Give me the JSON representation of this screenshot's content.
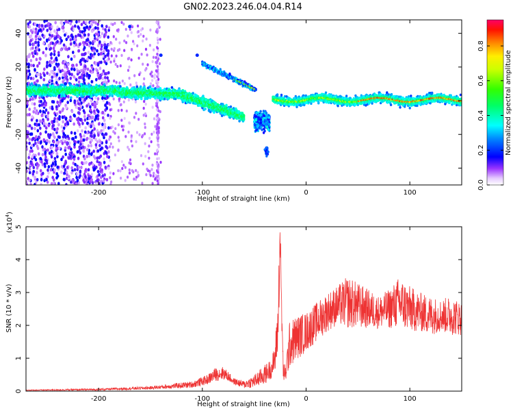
{
  "title": "GN02.2023.246.04.04.R14",
  "chart_data": [
    {
      "type": "heatmap",
      "xlabel": "Height of straight line (km)",
      "ylabel": "Frequency (Hz)",
      "xlim": [
        -270,
        150
      ],
      "ylim": [
        -50,
        48
      ],
      "x_ticks": [
        -200,
        -100,
        0,
        100
      ],
      "y_ticks": [
        -40,
        -20,
        0,
        20,
        40
      ],
      "colorbar": {
        "label": "Normalized spectral amplitude",
        "range": [
          0,
          0.95
        ],
        "ticks": [
          "0.0",
          "0.2",
          "0.4",
          "0.6",
          "0.8"
        ],
        "tick_values": [
          0,
          0.2,
          0.4,
          0.6,
          0.8
        ],
        "colormap": "rainbow (white/purple low → red/pink high)"
      },
      "features": [
        {
          "name": "main tone",
          "description": "horizontal band near 5 Hz descending to about -10 Hz",
          "x_range": [
            -270,
            -60
          ],
          "freq_range": [
            7,
            -12
          ]
        },
        {
          "name": "upper branch",
          "description": "branch descending from about 22 Hz to 8 Hz",
          "x_range": [
            -100,
            -50
          ],
          "freq_range": [
            22,
            8
          ]
        },
        {
          "name": "merge",
          "description": "both branches converge near -8 Hz and jump",
          "x_range": [
            -50,
            -35
          ],
          "freq_range": [
            -30,
            12
          ]
        },
        {
          "name": "steady tone",
          "description": "strong band near 0 Hz",
          "x_range": [
            -30,
            150
          ],
          "freq_range": [
            -3,
            3
          ]
        },
        {
          "name": "noise",
          "description": "broadband scattered noise at low heights",
          "x_range": [
            -270,
            -195
          ],
          "freq_range": [
            -50,
            48
          ]
        }
      ]
    },
    {
      "type": "line",
      "xlabel": "Height of straight line (km)",
      "ylabel": "SNR (10 * v/v)",
      "y_multiplier_label": "(x10",
      "y_multiplier_exp": "4",
      "y_multiplier_close": ")",
      "xlim": [
        -270,
        150
      ],
      "ylim": [
        0,
        5
      ],
      "x_ticks": [
        -200,
        -100,
        0,
        100
      ],
      "y_ticks": [
        0,
        1,
        2,
        3,
        4,
        5
      ],
      "color": "#ee3333",
      "series": [
        {
          "name": "",
          "envelope": {
            "x": [
              -270,
              -200,
              -150,
              -110,
              -95,
              -88,
              -80,
              -75,
              -70,
              -60,
              -50,
              -40,
              -33,
              -30,
              -27,
              -26,
              -25,
              -24,
              -22,
              -20,
              -16,
              -10,
              0,
              10,
              20,
              30,
              40,
              50,
              60,
              70,
              80,
              90,
              100,
              110,
              120,
              130,
              140,
              150
            ],
            "mean": [
              0.03,
              0.05,
              0.1,
              0.2,
              0.35,
              0.5,
              0.55,
              0.45,
              0.3,
              0.2,
              0.3,
              0.5,
              0.7,
              1.0,
              2.0,
              3.5,
              4.8,
              3.0,
              0.6,
              0.5,
              1.4,
              1.6,
              1.8,
              2.1,
              2.4,
              2.6,
              2.7,
              2.6,
              2.5,
              2.4,
              2.5,
              2.7,
              2.5,
              2.4,
              2.3,
              2.3,
              2.3,
              2.2
            ],
            "amp": [
              0.01,
              0.03,
              0.05,
              0.1,
              0.15,
              0.2,
              0.2,
              0.15,
              0.1,
              0.12,
              0.2,
              0.3,
              0.3,
              0.5,
              0.8,
              1.0,
              0.6,
              0.8,
              0.3,
              0.3,
              0.7,
              0.7,
              0.6,
              0.6,
              0.6,
              0.6,
              0.8,
              0.7,
              0.6,
              0.5,
              0.6,
              0.8,
              0.7,
              0.6,
              0.6,
              0.5,
              0.6,
              0.5
            ]
          }
        }
      ]
    }
  ]
}
